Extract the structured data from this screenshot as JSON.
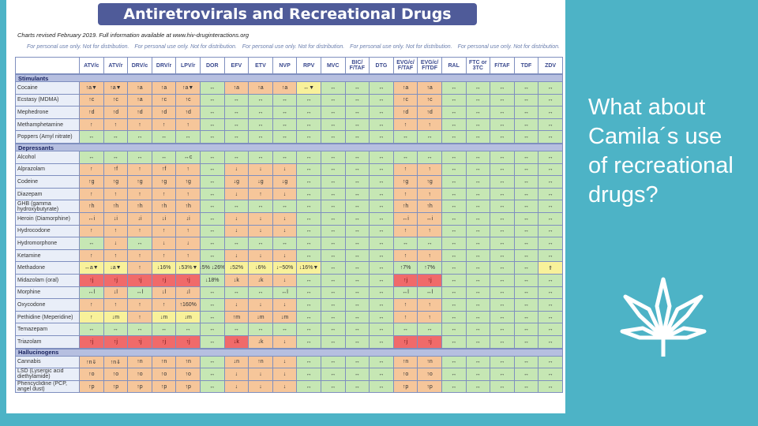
{
  "slide": {
    "question": "What about Camila´s use of recreational drugs?",
    "leaf_icon": "cannabis-leaf-icon"
  },
  "document": {
    "title": "Antiretrovirals and Recreational Drugs",
    "revised": "Charts revised February 2019. Full information available at www.hiv-druginteractions.org",
    "personal_notice": [
      "For personal use only. Not for distribution.",
      "For personal use only. Not for distribution.",
      "For personal use only. Not for distribution.",
      "For personal use only. Not for distribution.",
      "For personal use only. Not for distribution."
    ],
    "columns": [
      "ATV/c",
      "ATV/r",
      "DRV/c",
      "DRV/r",
      "LPV/r",
      "DOR",
      "EFV",
      "ETV",
      "NVP",
      "RPV",
      "MVC",
      "BIC/ F/TAF",
      "DTG",
      "EVG/c/ F/TAF",
      "EVG/c/ F/TDF",
      "RAL",
      "FTC or 3TC",
      "F/TAF",
      "TDF",
      "ZDV"
    ],
    "colors": {
      "orange": "#f6c69a",
      "green": "#c6e7b4",
      "yellow": "#f8f19a",
      "red": "#f06a6a"
    },
    "sections": [
      {
        "category": "Stimulants",
        "rows": [
          {
            "name": "Cocaine",
            "cells": [
              "↑a▼|o",
              "↑a▼|o",
              "↑a|o",
              "↑a|o",
              "↑a▼|o",
              "↔|g",
              "↑a|o",
              "↑a|o",
              "↑a|o",
              "↔▼|y",
              "↔|g",
              "↔|g",
              "↔|g",
              "↑a|o",
              "↑a|o",
              "↔|g",
              "↔|g",
              "↔|g",
              "↔|g",
              "↔|g"
            ]
          },
          {
            "name": "Ecstasy (MDMA)",
            "cells": [
              "↑c|o",
              "↑c|o",
              "↑a|o",
              "↑c|o",
              "↑c|o",
              "↔|g",
              "↔|g",
              "↔|g",
              "↔|g",
              "↔|g",
              "↔|g",
              "↔|g",
              "↔|g",
              "↑c|o",
              "↑c|o",
              "↔|g",
              "↔|g",
              "↔|g",
              "↔|g",
              "↔|g"
            ]
          },
          {
            "name": "Mephedrone",
            "cells": [
              "↑d|o",
              "↑d|o",
              "↑d|o",
              "↑d|o",
              "↑d|o",
              "↔|g",
              "↔|g",
              "↔|g",
              "↔|g",
              "↔|g",
              "↔|g",
              "↔|g",
              "↔|g",
              "↑d|o",
              "↑d|o",
              "↔|g",
              "↔|g",
              "↔|g",
              "↔|g",
              "↔|g"
            ]
          },
          {
            "name": "Methamphetamine",
            "cells": [
              "↑|o",
              "↑|o",
              "↑|o",
              "↑|o",
              "↑|o",
              "↔|g",
              "↔|g",
              "↔|g",
              "↔|g",
              "↔|g",
              "↔|g",
              "↔|g",
              "↔|g",
              "↑|o",
              "↑|o",
              "↔|g",
              "↔|g",
              "↔|g",
              "↔|g",
              "↔|g"
            ]
          },
          {
            "name": "Poppers (Amyl nitrate)",
            "cells": [
              "↔|g",
              "↔|g",
              "↔|g",
              "↔|g",
              "↔|g",
              "↔|g",
              "↔|g",
              "↔|g",
              "↔|g",
              "↔|g",
              "↔|g",
              "↔|g",
              "↔|g",
              "↔|g",
              "↔|g",
              "↔|g",
              "↔|g",
              "↔|g",
              "↔|g",
              "↔|g"
            ]
          }
        ]
      },
      {
        "category": "Depressants",
        "rows": [
          {
            "name": "Alcohol",
            "cells": [
              "↔|g",
              "↔|g",
              "↔|g",
              "↔|g",
              "↔c|g",
              "↔|g",
              "↔|g",
              "↔|g",
              "↔|g",
              "↔|g",
              "↔|g",
              "↔|g",
              "↔|g",
              "↔|g",
              "↔|g",
              "↔|g",
              "↔|g",
              "↔|g",
              "↔|g",
              "↔|g"
            ]
          },
          {
            "name": "Alprazolam",
            "cells": [
              "↑|o",
              "↑f|o",
              "↑|o",
              "↑f|o",
              "↑|o",
              "↔|g",
              "↓|o",
              "↓|o",
              "↓|o",
              "↔|g",
              "↔|g",
              "↔|g",
              "↔|g",
              "↑|o",
              "↑|o",
              "↔|g",
              "↔|g",
              "↔|g",
              "↔|g",
              "↔|g"
            ]
          },
          {
            "name": "Codeine",
            "cells": [
              "↑g|o",
              "↑g|o",
              "↑g|o",
              "↑g|o",
              "↑g|o",
              "↔|g",
              "↓g|o",
              "↓g|o",
              "↓g|o",
              "↔|g",
              "↔|g",
              "↔|g",
              "↔|g",
              "↑g|o",
              "↑g|o",
              "↔|g",
              "↔|g",
              "↔|g",
              "↔|g",
              "↔|g"
            ]
          },
          {
            "name": "Diazepam",
            "cells": [
              "↑|o",
              "↑|o",
              "↑|o",
              "↑|o",
              "↑|o",
              "↔|g",
              "↓|o",
              "↑|o",
              "↓|o",
              "↔|g",
              "↔|g",
              "↔|g",
              "↔|g",
              "↑|o",
              "↑|o",
              "↔|g",
              "↔|g",
              "↔|g",
              "↔|g",
              "↔|g"
            ]
          },
          {
            "name": "GHB (gamma hydroxybutyrate)",
            "cells": [
              "↑h|o",
              "↑h|o",
              "↑h|o",
              "↑h|o",
              "↑h|o",
              "↔|g",
              "↔|g",
              "↔|g",
              "↔|g",
              "↔|g",
              "↔|g",
              "↔|g",
              "↔|g",
              "↑h|o",
              "↑h|o",
              "↔|g",
              "↔|g",
              "↔|g",
              "↔|g",
              "↔|g"
            ]
          },
          {
            "name": "Heroin (Diamorphine)",
            "cells": [
              "↔i|o",
              "↓i|o",
              "↓i|o",
              "↓i|o",
              "↓i|o",
              "↔|g",
              "↓|o",
              "↓|o",
              "↓|o",
              "↔|g",
              "↔|g",
              "↔|g",
              "↔|g",
              "↔i|o",
              "↔i|o",
              "↔|g",
              "↔|g",
              "↔|g",
              "↔|g",
              "↔|g"
            ]
          },
          {
            "name": "Hydrocodone",
            "cells": [
              "↑|o",
              "↑|o",
              "↑|o",
              "↑|o",
              "↑|o",
              "↔|g",
              "↓|o",
              "↓|o",
              "↓|o",
              "↔|g",
              "↔|g",
              "↔|g",
              "↔|g",
              "↑|o",
              "↑|o",
              "↔|g",
              "↔|g",
              "↔|g",
              "↔|g",
              "↔|g"
            ]
          },
          {
            "name": "Hydromorphone",
            "cells": [
              "↔|g",
              "↓|o",
              "↔|g",
              "↓|o",
              "↓|o",
              "↔|g",
              "↔|g",
              "↔|g",
              "↔|g",
              "↔|g",
              "↔|g",
              "↔|g",
              "↔|g",
              "↔|g",
              "↔|g",
              "↔|g",
              "↔|g",
              "↔|g",
              "↔|g",
              "↔|g"
            ]
          },
          {
            "name": "Ketamine",
            "cells": [
              "↑|o",
              "↑|o",
              "↑|o",
              "↑|o",
              "↑|o",
              "↔|g",
              "↓|o",
              "↓|o",
              "↓|o",
              "↔|g",
              "↔|g",
              "↔|g",
              "↔|g",
              "↑|o",
              "↑|o",
              "↔|g",
              "↔|g",
              "↔|g",
              "↔|g",
              "↔|g"
            ]
          },
          {
            "name": "Methadone",
            "cells": [
              "↔a▼|y",
              "↓a▼|y",
              "↑|o",
              "↓16%|y",
              "↓53%▼|y",
              "↓5% ↓26%|g",
              "↓52%|y",
              "↓6%|y",
              "↓~50%|y",
              "↓16%▼|y",
              "↔|g",
              "↔|g",
              "↔|g",
              "↑7%|g",
              "↑7%|g",
              "↔|g",
              "↔|g",
              "↔|g",
              "↔|g",
              "⇑|y"
            ]
          },
          {
            "name": "Midazolam (oral)",
            "cells": [
              "↑j|r",
              "↑j|r",
              "↑j|r",
              "↑j|r",
              "↑j|r",
              "↓18%|g",
              "↓k|o",
              "↓k|o",
              "↓|o",
              "↔|g",
              "↔|g",
              "↔|g",
              "↔|g",
              "↑j|r",
              "↑j|r",
              "↔|g",
              "↔|g",
              "↔|g",
              "↔|g",
              "↔|g"
            ]
          },
          {
            "name": "Morphine",
            "cells": [
              "↔l|g",
              "↓l|o",
              "↔l|g",
              "↓l|o",
              "↓l|o",
              "↔|g",
              "↔|g",
              "↔|g",
              "↔l|g",
              "↔|g",
              "↔|g",
              "↔|g",
              "↔|g",
              "↔l|g",
              "↔l|g",
              "↔|g",
              "↔|g",
              "↔|g",
              "↔|g",
              "↔|g"
            ]
          },
          {
            "name": "Oxycodone",
            "cells": [
              "↑|o",
              "↑|o",
              "↑|o",
              "↑|o",
              "↑160%|o",
              "↔|g",
              "↓|o",
              "↓|o",
              "↓|o",
              "↔|g",
              "↔|g",
              "↔|g",
              "↔|g",
              "↑|o",
              "↑|o",
              "↔|g",
              "↔|g",
              "↔|g",
              "↔|g",
              "↔|g"
            ]
          },
          {
            "name": "Pethidine (Meperidine)",
            "cells": [
              "↑|y",
              "↓m|y",
              "↑|o",
              "↓m|y",
              "↓m|y",
              "↔|g",
              "↑m|o",
              "↓m|o",
              "↓m|o",
              "↔|g",
              "↔|g",
              "↔|g",
              "↔|g",
              "↑|o",
              "↑|o",
              "↔|g",
              "↔|g",
              "↔|g",
              "↔|g",
              "↔|g"
            ]
          },
          {
            "name": "Temazepam",
            "cells": [
              "↔|g",
              "↔|g",
              "↔|g",
              "↔|g",
              "↔|g",
              "↔|g",
              "↔|g",
              "↔|g",
              "↔|g",
              "↔|g",
              "↔|g",
              "↔|g",
              "↔|g",
              "↔|g",
              "↔|g",
              "↔|g",
              "↔|g",
              "↔|g",
              "↔|g",
              "↔|g"
            ]
          },
          {
            "name": "Triazolam",
            "cells": [
              "↑j|r",
              "↑j|r",
              "↑j|r",
              "↑j|r",
              "↑j|r",
              "↔|g",
              "↓k|r",
              "↓k|o",
              "↓|o",
              "↔|g",
              "↔|g",
              "↔|g",
              "↔|g",
              "↑j|r",
              "↑j|r",
              "↔|g",
              "↔|g",
              "↔|g",
              "↔|g",
              "↔|g"
            ]
          }
        ]
      },
      {
        "category": "Hallucinogens",
        "rows": [
          {
            "name": "Cannabis",
            "cells": [
              "↑n⇓|o",
              "↑n⇓|o",
              "↑n|o",
              "↑n|o",
              "↑n|o",
              "↔|g",
              "↓n|o",
              "↑n|o",
              "↓|o",
              "↔|g",
              "↔|g",
              "↔|g",
              "↔|g",
              "↑n|o",
              "↑n|o",
              "↔|g",
              "↔|g",
              "↔|g",
              "↔|g",
              "↔|g"
            ]
          },
          {
            "name": "LSD (Lysergic acid diethylamide)",
            "cells": [
              "↑o|o",
              "↑o|o",
              "↑o|o",
              "↑o|o",
              "↑o|o",
              "↔|g",
              "↓|o",
              "↓|o",
              "↓|o",
              "↔|g",
              "↔|g",
              "↔|g",
              "↔|g",
              "↑o|o",
              "↑o|o",
              "↔|g",
              "↔|g",
              "↔|g",
              "↔|g",
              "↔|g"
            ]
          },
          {
            "name": "Phencyclidine (PCP, angel dust)",
            "cells": [
              "↑p|o",
              "↑p|o",
              "↑p|o",
              "↑p|o",
              "↑p|o",
              "↔|g",
              "↓|o",
              "↓|o",
              "↓|o",
              "↔|g",
              "↔|g",
              "↔|g",
              "↔|g",
              "↑p|o",
              "↑p|o",
              "↔|g",
              "↔|g",
              "↔|g",
              "↔|g",
              "↔|g"
            ]
          }
        ]
      }
    ]
  }
}
